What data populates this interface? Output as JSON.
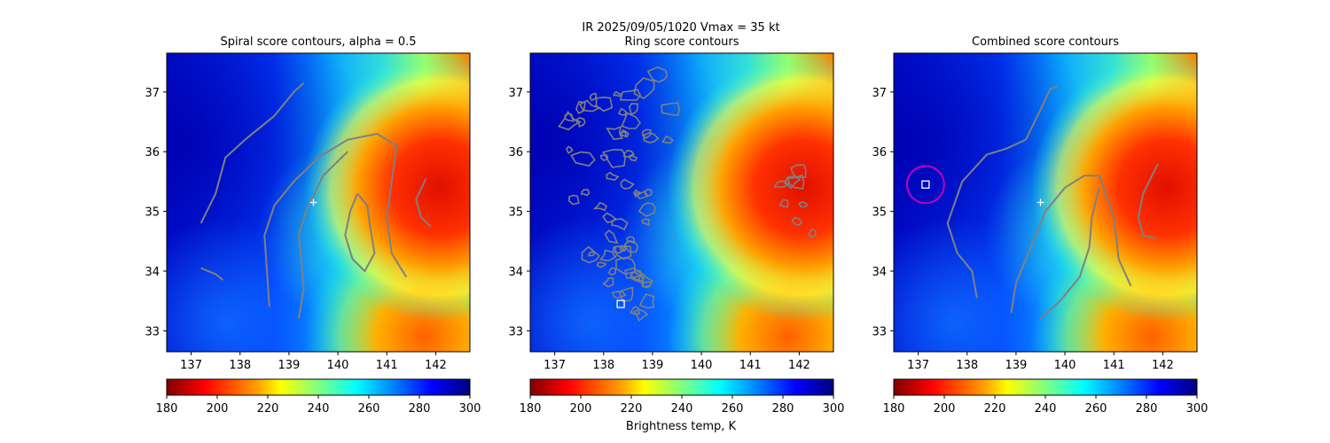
{
  "figure": {
    "suptitle": "IR  2025/09/05/1020    Vmax = 35 kt",
    "colorbar_label": "Brightness temp, K"
  },
  "colors": {
    "contour": "#808080",
    "marker": "#ffffff",
    "circle": "#c000c0"
  },
  "colorbar": {
    "colormap": "jet_r",
    "range": [
      180,
      300
    ],
    "ticks": [
      "180",
      "200",
      "220",
      "240",
      "260",
      "280",
      "300"
    ]
  },
  "chart_data": [
    {
      "type": "heatmap",
      "title": "Spiral score contours, alpha =  0.5",
      "xlim": [
        136.5,
        142.7
      ],
      "ylim": [
        32.65,
        37.65
      ],
      "xticks": [
        "137",
        "138",
        "139",
        "140",
        "141",
        "142"
      ],
      "yticks": [
        "33",
        "34",
        "35",
        "36",
        "37"
      ],
      "center_marker": {
        "symbol": "plus",
        "x": 139.5,
        "y": 35.15
      },
      "contours": [
        [
          [
            137.2,
            34.8
          ],
          [
            137.5,
            35.3
          ],
          [
            137.7,
            35.9
          ],
          [
            138.1,
            36.2
          ],
          [
            138.7,
            36.6
          ],
          [
            139.1,
            37.0
          ],
          [
            139.3,
            37.15
          ]
        ],
        [
          [
            137.2,
            34.05
          ],
          [
            137.5,
            33.95
          ],
          [
            137.65,
            33.85
          ]
        ],
        [
          [
            138.6,
            33.4
          ],
          [
            138.55,
            34.0
          ],
          [
            138.5,
            34.6
          ],
          [
            138.7,
            35.1
          ],
          [
            139.1,
            35.5
          ],
          [
            139.6,
            35.9
          ],
          [
            140.2,
            36.2
          ],
          [
            140.8,
            36.3
          ],
          [
            141.2,
            36.1
          ],
          [
            141.1,
            35.5
          ],
          [
            141.0,
            34.9
          ],
          [
            141.1,
            34.3
          ],
          [
            141.4,
            33.9
          ]
        ],
        [
          [
            139.2,
            33.2
          ],
          [
            139.3,
            33.7
          ],
          [
            139.25,
            34.2
          ],
          [
            139.2,
            34.6
          ],
          [
            139.35,
            35.0
          ],
          [
            139.7,
            35.6
          ],
          [
            140.2,
            36.0
          ]
        ],
        [
          [
            140.4,
            35.3
          ],
          [
            140.25,
            35.0
          ],
          [
            140.15,
            34.6
          ],
          [
            140.3,
            34.2
          ],
          [
            140.55,
            34.0
          ],
          [
            140.75,
            34.3
          ],
          [
            140.65,
            34.8
          ],
          [
            140.6,
            35.1
          ],
          [
            140.4,
            35.3
          ]
        ],
        [
          [
            141.8,
            35.55
          ],
          [
            141.6,
            35.2
          ],
          [
            141.7,
            34.9
          ],
          [
            141.9,
            34.75
          ]
        ]
      ]
    },
    {
      "type": "heatmap",
      "title": "Ring score contours",
      "xlim": [
        136.5,
        142.7
      ],
      "ylim": [
        32.65,
        37.65
      ],
      "xticks": [
        "137",
        "138",
        "139",
        "140",
        "141",
        "142"
      ],
      "yticks": [
        "33",
        "34",
        "35",
        "36",
        "37"
      ],
      "center_marker": {
        "symbol": "square",
        "x": 138.35,
        "y": 33.45
      },
      "contour_regions": [
        {
          "xrange": [
            137.3,
            139.5
          ],
          "yrange": [
            36.0,
            37.3
          ],
          "count": 22
        },
        {
          "xrange": [
            137.4,
            139.0
          ],
          "yrange": [
            35.2,
            36.1
          ],
          "count": 12
        },
        {
          "xrange": [
            137.6,
            139.0
          ],
          "yrange": [
            34.1,
            35.2
          ],
          "count": 16
        },
        {
          "xrange": [
            137.9,
            139.0
          ],
          "yrange": [
            33.2,
            34.1
          ],
          "count": 12
        },
        {
          "xrange": [
            141.6,
            142.3
          ],
          "yrange": [
            34.6,
            35.8
          ],
          "count": 8
        }
      ]
    },
    {
      "type": "heatmap",
      "title": "Combined score contours",
      "xlim": [
        136.5,
        142.7
      ],
      "ylim": [
        32.65,
        37.65
      ],
      "xticks": [
        "137",
        "138",
        "139",
        "140",
        "141",
        "142"
      ],
      "yticks": [
        "33",
        "34",
        "35",
        "36",
        "37"
      ],
      "center_marker": {
        "symbol": "plus",
        "x": 139.5,
        "y": 35.15
      },
      "square_marker": {
        "x": 137.15,
        "y": 35.45
      },
      "circle_marker": {
        "x": 137.15,
        "y": 35.45,
        "radius": 0.38
      },
      "contours": [
        [
          [
            138.2,
            33.55
          ],
          [
            138.1,
            34.0
          ],
          [
            137.8,
            34.3
          ],
          [
            137.6,
            34.8
          ],
          [
            137.9,
            35.5
          ],
          [
            138.4,
            35.95
          ],
          [
            138.8,
            36.05
          ],
          [
            139.2,
            36.2
          ],
          [
            139.5,
            36.7
          ],
          [
            139.7,
            37.05
          ],
          [
            139.85,
            37.1
          ]
        ],
        [
          [
            138.9,
            33.3
          ],
          [
            139.0,
            33.8
          ],
          [
            139.3,
            34.4
          ],
          [
            139.6,
            35.0
          ],
          [
            140.0,
            35.4
          ],
          [
            140.4,
            35.6
          ],
          [
            140.7,
            35.6
          ],
          [
            141.0,
            34.9
          ],
          [
            141.1,
            34.2
          ],
          [
            141.35,
            33.75
          ]
        ],
        [
          [
            139.5,
            33.2
          ],
          [
            139.9,
            33.5
          ],
          [
            140.3,
            33.9
          ],
          [
            140.5,
            34.4
          ],
          [
            140.55,
            34.9
          ],
          [
            140.7,
            35.4
          ]
        ],
        [
          [
            141.9,
            35.8
          ],
          [
            141.6,
            35.3
          ],
          [
            141.5,
            34.9
          ],
          [
            141.6,
            34.6
          ],
          [
            141.85,
            34.55
          ]
        ]
      ]
    }
  ]
}
